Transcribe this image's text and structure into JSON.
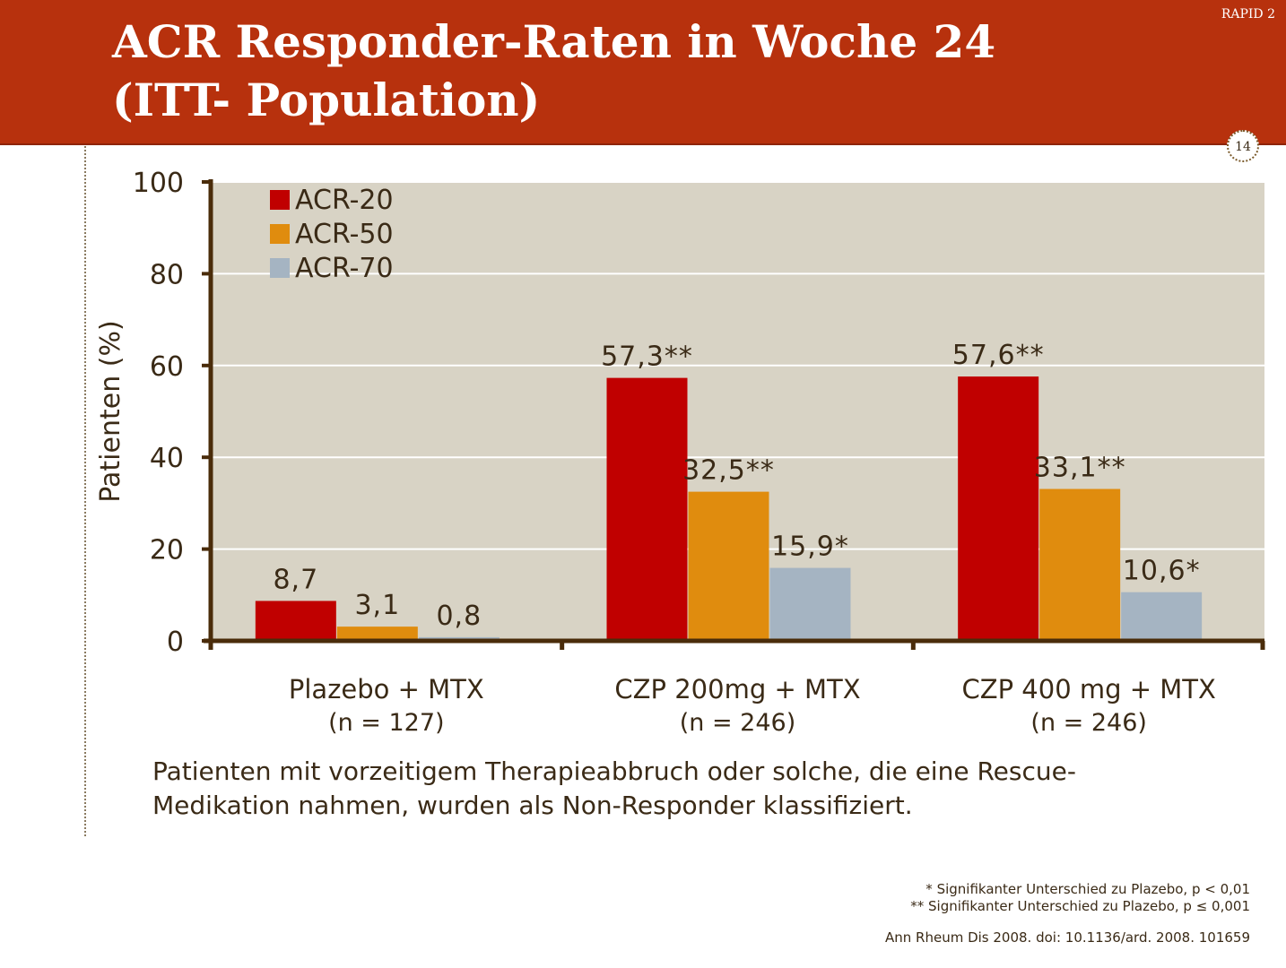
{
  "header": {
    "title_line1": "ACR Responder-Raten in Woche 24",
    "title_line2": "(ITT- Population)",
    "tag": "RAPID 2",
    "page_number": "14"
  },
  "chart_data": {
    "type": "bar",
    "ylabel": "Patienten (%)",
    "ylim": [
      0,
      100
    ],
    "yticks": [
      0,
      20,
      40,
      60,
      80,
      100
    ],
    "grid": true,
    "legend_position": "top-left",
    "categories": [
      {
        "label": "Plazebo + MTX",
        "sublabel": "(n = 127)"
      },
      {
        "label": "CZP 200mg + MTX",
        "sublabel": "(n = 246)"
      },
      {
        "label": "CZP 400 mg + MTX",
        "sublabel": "(n = 246)"
      }
    ],
    "series": [
      {
        "name": "ACR-20",
        "color": "#c00000",
        "values": [
          8.7,
          57.3,
          57.6
        ],
        "labels": [
          "8,7",
          "57,3**",
          "57,6**"
        ]
      },
      {
        "name": "ACR-50",
        "color": "#e08c0e",
        "values": [
          3.1,
          32.5,
          33.1
        ],
        "labels": [
          "3,1",
          "32,5**",
          "33,1**"
        ]
      },
      {
        "name": "ACR-70",
        "color": "#a5b4c2",
        "values": [
          0.8,
          15.9,
          10.6
        ],
        "labels": [
          "0,8",
          "15,9*",
          "10,6*"
        ]
      }
    ],
    "plot_background": "#d8d3c5",
    "axis_color": "#4a2c0a"
  },
  "note": {
    "line1": "Patienten mit vorzeitigem Therapieabbruch oder solche, die eine Rescue-",
    "line2": "Medikation nahmen, wurden als Non-Responder klassifiziert."
  },
  "footnotes": {
    "f1": "* Signifikanter Unterschied zu Plazebo, p < 0,01",
    "f2": "** Signifikanter Unterschied zu Plazebo, p ≤ 0,001",
    "citation": "Ann Rheum Dis 2008. doi: 10.1136/ard. 2008. 101659"
  }
}
